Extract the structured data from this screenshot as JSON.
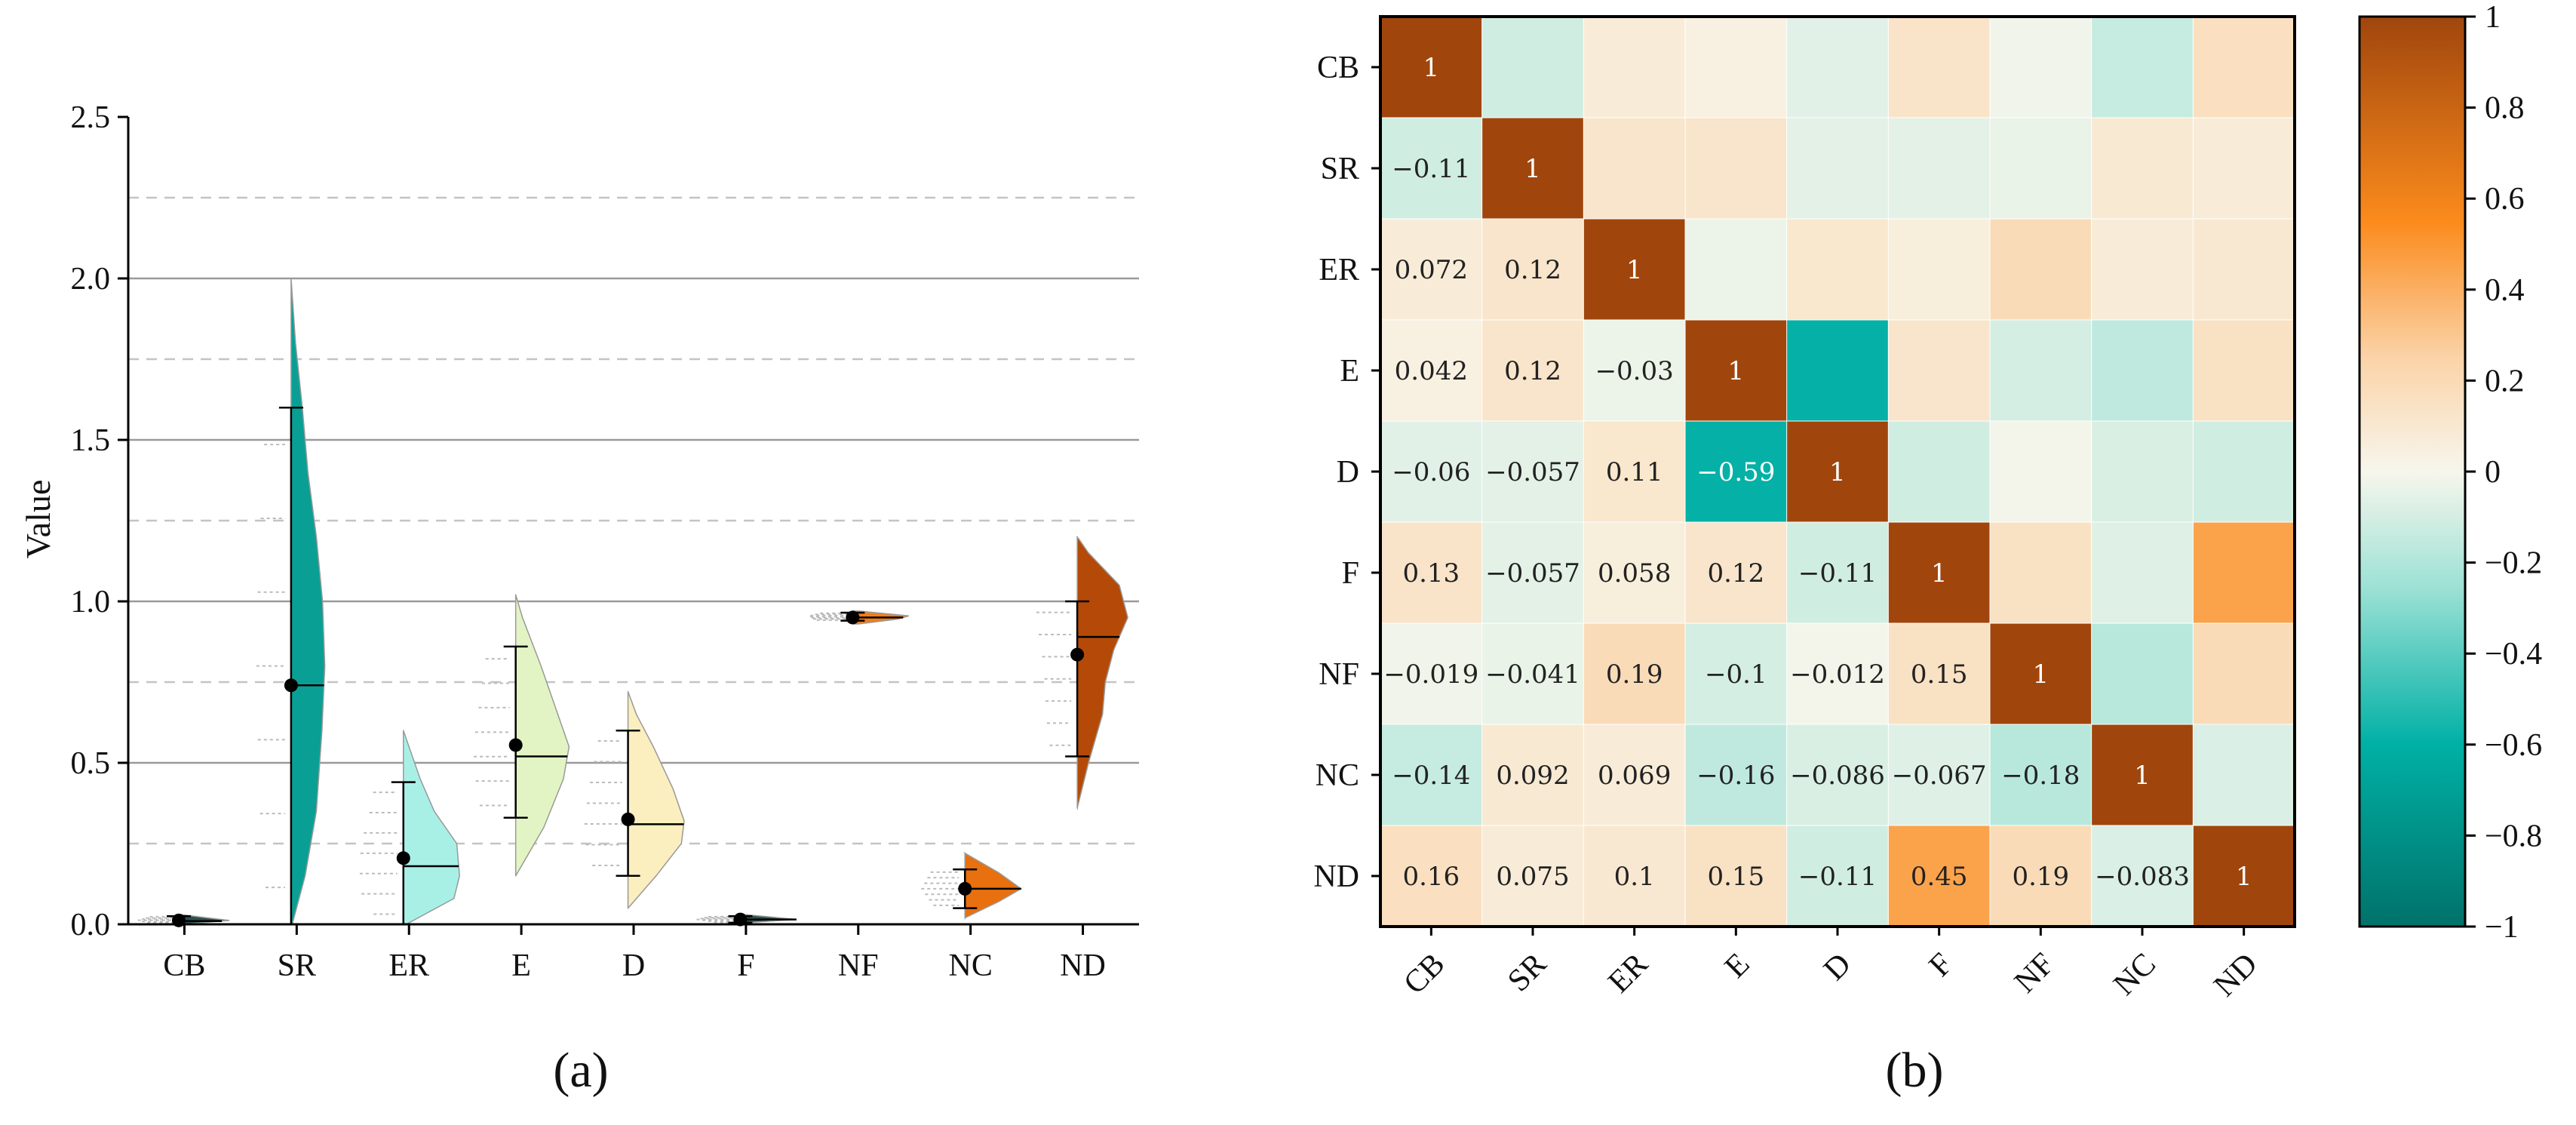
{
  "chart_data": [
    {
      "type": "violin",
      "caption": "(a)",
      "ylabel": "Value",
      "ylim": [
        0,
        2.5
      ],
      "yticks": [
        "0.0",
        "0.5",
        "1.0",
        "1.5",
        "2.0",
        "2.5"
      ],
      "grid": {
        "solid": [
          0.5,
          1.0,
          1.5,
          2.0
        ],
        "dashed": [
          0.25,
          0.75,
          1.25,
          1.75,
          2.25
        ]
      },
      "categories": [
        "CB",
        "SR",
        "ER",
        "E",
        "D",
        "F",
        "NF",
        "NC",
        "ND"
      ],
      "series": [
        {
          "name": "CB",
          "color": "#2f4f4f",
          "mean": 0.012,
          "median": 0.01,
          "low": 0.0,
          "high": 0.025,
          "range": [
            0.0,
            0.03
          ],
          "density": [
            [
              0.0,
              0.1
            ],
            [
              0.006,
              0.5
            ],
            [
              0.012,
              0.9
            ],
            [
              0.02,
              0.5
            ],
            [
              0.03,
              0.05
            ]
          ]
        },
        {
          "name": "SR",
          "color": "#0a9f94",
          "mean": 0.74,
          "median": 0.74,
          "low": 0.0,
          "high": 1.6,
          "range": [
            0.0,
            2.0
          ],
          "density": [
            [
              0.0,
              0.02
            ],
            [
              0.15,
              0.25
            ],
            [
              0.35,
              0.45
            ],
            [
              0.6,
              0.55
            ],
            [
              0.8,
              0.6
            ],
            [
              1.0,
              0.56
            ],
            [
              1.2,
              0.45
            ],
            [
              1.4,
              0.3
            ],
            [
              1.6,
              0.2
            ],
            [
              1.8,
              0.08
            ],
            [
              2.0,
              0.0
            ]
          ]
        },
        {
          "name": "ER",
          "color": "#a8f0e6",
          "mean": 0.205,
          "median": 0.18,
          "low": 0.0,
          "high": 0.44,
          "range": [
            0.0,
            0.6
          ],
          "density": [
            [
              0.0,
              0.05
            ],
            [
              0.08,
              0.9
            ],
            [
              0.15,
              1.0
            ],
            [
              0.25,
              0.95
            ],
            [
              0.35,
              0.55
            ],
            [
              0.45,
              0.3
            ],
            [
              0.55,
              0.1
            ],
            [
              0.6,
              0.0
            ]
          ]
        },
        {
          "name": "E",
          "color": "#e3f4c4",
          "mean": 0.555,
          "median": 0.52,
          "low": 0.33,
          "high": 0.86,
          "range": [
            0.15,
            1.02
          ],
          "density": [
            [
              0.15,
              0.0
            ],
            [
              0.3,
              0.5
            ],
            [
              0.45,
              0.85
            ],
            [
              0.55,
              0.95
            ],
            [
              0.65,
              0.75
            ],
            [
              0.8,
              0.45
            ],
            [
              0.95,
              0.12
            ],
            [
              1.02,
              0.0
            ]
          ]
        },
        {
          "name": "D",
          "color": "#fbefbf",
          "mean": 0.325,
          "median": 0.31,
          "low": 0.15,
          "high": 0.6,
          "range": [
            0.05,
            0.72
          ],
          "density": [
            [
              0.05,
              0.0
            ],
            [
              0.15,
              0.5
            ],
            [
              0.25,
              0.95
            ],
            [
              0.32,
              1.0
            ],
            [
              0.42,
              0.8
            ],
            [
              0.55,
              0.45
            ],
            [
              0.65,
              0.15
            ],
            [
              0.72,
              0.0
            ]
          ]
        },
        {
          "name": "F",
          "color": "#2f4f4f",
          "mean": 0.015,
          "median": 0.015,
          "low": 0.005,
          "high": 0.025,
          "range": [
            0.005,
            0.03
          ],
          "density": [
            [
              0.005,
              0.1
            ],
            [
              0.015,
              1.0
            ],
            [
              0.03,
              0.1
            ]
          ]
        },
        {
          "name": "NF",
          "color": "#f07e1a",
          "mean": 0.95,
          "median": 0.95,
          "low": 0.94,
          "high": 0.965,
          "range": [
            0.93,
            0.97
          ],
          "density": [
            [
              0.93,
              0.1
            ],
            [
              0.945,
              0.8
            ],
            [
              0.955,
              1.0
            ],
            [
              0.97,
              0.1
            ]
          ]
        },
        {
          "name": "NC",
          "color": "#e8700f",
          "mean": 0.11,
          "median": 0.11,
          "low": 0.05,
          "high": 0.17,
          "range": [
            0.02,
            0.22
          ],
          "density": [
            [
              0.02,
              0.0
            ],
            [
              0.07,
              0.6
            ],
            [
              0.11,
              1.0
            ],
            [
              0.16,
              0.6
            ],
            [
              0.22,
              0.0
            ]
          ]
        },
        {
          "name": "ND",
          "color": "#b54a08",
          "mean": 0.835,
          "median": 0.89,
          "low": 0.52,
          "high": 1.0,
          "range": [
            0.36,
            1.2
          ],
          "density": [
            [
              0.36,
              0.0
            ],
            [
              0.5,
              0.2
            ],
            [
              0.65,
              0.45
            ],
            [
              0.75,
              0.5
            ],
            [
              0.85,
              0.65
            ],
            [
              0.95,
              0.9
            ],
            [
              1.05,
              0.75
            ],
            [
              1.15,
              0.2
            ],
            [
              1.2,
              0.0
            ]
          ]
        }
      ]
    },
    {
      "type": "heatmap",
      "caption": "(b)",
      "labels": [
        "CB",
        "SR",
        "ER",
        "E",
        "D",
        "F",
        "NF",
        "NC",
        "ND"
      ],
      "colorbar": {
        "min": -1,
        "max": 1,
        "ticks": [
          "1",
          "0.8",
          "0.6",
          "0.4",
          "0.2",
          "0",
          "−0.2",
          "−0.4",
          "−0.6",
          "−0.8",
          "−1"
        ]
      },
      "colormap": [
        [
          -1.0,
          "#00726a"
        ],
        [
          -0.6,
          "#00b0a5"
        ],
        [
          -0.25,
          "#9fe2d6"
        ],
        [
          0.0,
          "#f7f6ec"
        ],
        [
          0.25,
          "#fbd3a8"
        ],
        [
          0.55,
          "#fb8b1c"
        ],
        [
          1.0,
          "#a0460d"
        ]
      ],
      "matrix": [
        [
          1,
          -0.11,
          0.072,
          0.042,
          -0.06,
          0.13,
          -0.019,
          -0.14,
          0.16
        ],
        [
          -0.11,
          1,
          0.12,
          0.12,
          -0.057,
          -0.057,
          -0.041,
          0.092,
          0.075
        ],
        [
          0.072,
          0.12,
          1,
          -0.03,
          0.11,
          0.058,
          0.19,
          0.069,
          0.1
        ],
        [
          0.042,
          0.12,
          -0.03,
          1,
          -0.59,
          0.12,
          -0.1,
          -0.16,
          0.15
        ],
        [
          -0.06,
          -0.057,
          0.11,
          -0.59,
          1,
          -0.11,
          -0.012,
          -0.086,
          -0.11
        ],
        [
          0.13,
          -0.057,
          0.058,
          0.12,
          -0.11,
          1,
          0.15,
          -0.067,
          0.45
        ],
        [
          -0.019,
          -0.041,
          0.19,
          -0.1,
          -0.012,
          0.15,
          1,
          -0.18,
          0.19
        ],
        [
          -0.14,
          0.092,
          0.069,
          -0.16,
          -0.086,
          -0.067,
          -0.18,
          1,
          -0.083
        ],
        [
          0.16,
          0.075,
          0.1,
          0.15,
          -0.11,
          0.45,
          0.19,
          -0.083,
          1
        ]
      ],
      "annotations": [
        [
          "1",
          "",
          "",
          "",
          "",
          "",
          "",
          "",
          ""
        ],
        [
          "−0.11",
          "1",
          "",
          "",
          "",
          "",
          "",
          "",
          ""
        ],
        [
          "0.072",
          "0.12",
          "1",
          "",
          "",
          "",
          "",
          "",
          ""
        ],
        [
          "0.042",
          "0.12",
          "−0.03",
          "1",
          "",
          "",
          "",
          "",
          ""
        ],
        [
          "−0.06",
          "−0.057",
          "0.11",
          "−0.59",
          "1",
          "",
          "",
          "",
          ""
        ],
        [
          "0.13",
          "−0.057",
          "0.058",
          "0.12",
          "−0.11",
          "1",
          "",
          "",
          ""
        ],
        [
          "−0.019",
          "−0.041",
          "0.19",
          "−0.1",
          "−0.012",
          "0.15",
          "1",
          "",
          ""
        ],
        [
          "−0.14",
          "0.092",
          "0.069",
          "−0.16",
          "−0.086",
          "−0.067",
          "−0.18",
          "1",
          ""
        ],
        [
          "0.16",
          "0.075",
          "0.1",
          "0.15",
          "−0.11",
          "0.45",
          "0.19",
          "−0.083",
          "1"
        ]
      ]
    }
  ]
}
